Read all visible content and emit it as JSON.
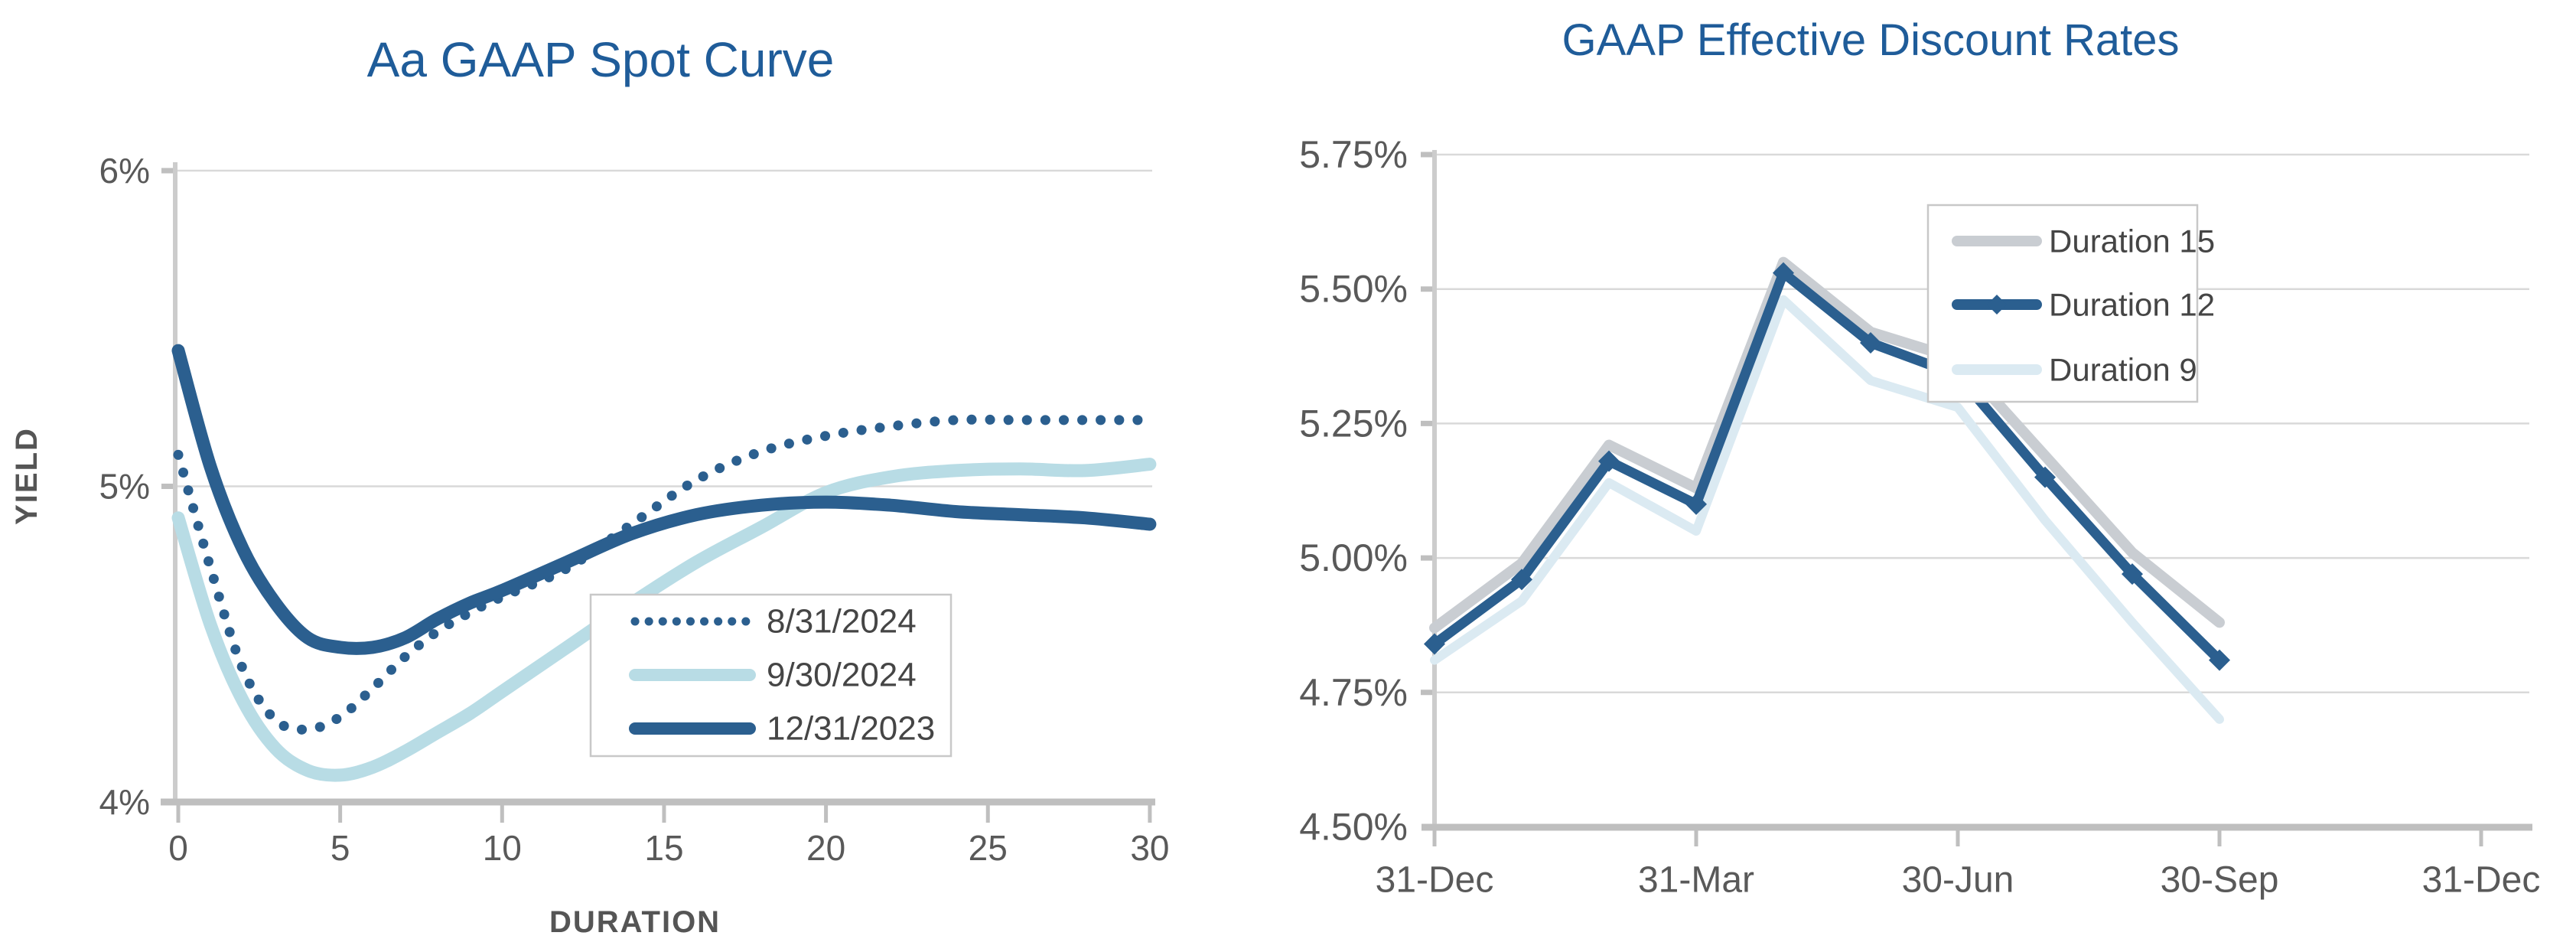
{
  "page": {
    "background": "#FFFFFF"
  },
  "palette": {
    "title_blue": "#1F5C99",
    "dark_blue": "#2B5F8F",
    "light_blue": "#B8DCE5",
    "pale_blue": "#DBEAF2",
    "gray_series": "#C9CDD2",
    "grid": "#D9D9D9",
    "axis": "#BFBFBF",
    "tick_text": "#595959",
    "legend_text": "#454545"
  },
  "chart_data": [
    {
      "type": "line",
      "title": "Aa GAAP Spot Curve",
      "xlabel": "DURATION",
      "ylabel": "YIELD",
      "xlim": [
        0,
        30
      ],
      "ylim": [
        4,
        6
      ],
      "x_ticks": [
        "0",
        "5",
        "10",
        "15",
        "20",
        "25",
        "30"
      ],
      "y_ticks": [
        "6%",
        "5%",
        "4%"
      ],
      "y_tick_values": [
        6,
        5,
        4
      ],
      "grid_values": [
        6,
        5
      ],
      "grid_on": true,
      "legend_position": "inside-lower-right",
      "legend_entries": [
        "8/31/2024",
        "9/30/2024",
        "12/31/2023"
      ],
      "x": [
        0,
        1,
        2,
        3,
        4,
        5,
        6,
        7,
        8,
        9,
        10,
        12,
        14,
        16,
        18,
        20,
        22,
        24,
        26,
        28,
        30
      ],
      "series": [
        {
          "name": "8/31/2024",
          "style": "dotted",
          "color": "#2B5F8F",
          "values": [
            5.1,
            4.74,
            4.42,
            4.26,
            4.23,
            4.27,
            4.36,
            4.46,
            4.54,
            4.6,
            4.65,
            4.74,
            4.88,
            5.02,
            5.11,
            5.16,
            5.19,
            5.21,
            5.21,
            5.21,
            5.21
          ]
        },
        {
          "name": "9/30/2024",
          "style": "solid",
          "color": "#B8DCE5",
          "values": [
            4.9,
            4.56,
            4.32,
            4.17,
            4.1,
            4.085,
            4.11,
            4.16,
            4.22,
            4.28,
            4.35,
            4.49,
            4.63,
            4.76,
            4.87,
            4.98,
            5.03,
            5.05,
            5.055,
            5.05,
            5.07
          ]
        },
        {
          "name": "12/31/2023",
          "style": "solid",
          "color": "#2B5F8F",
          "values": [
            5.43,
            5.06,
            4.8,
            4.63,
            4.52,
            4.49,
            4.49,
            4.52,
            4.58,
            4.63,
            4.67,
            4.76,
            4.85,
            4.91,
            4.94,
            4.95,
            4.94,
            4.92,
            4.91,
            4.9,
            4.88
          ]
        }
      ]
    },
    {
      "type": "line",
      "title": "GAAP Effective Discount Rates",
      "xlabel": "",
      "ylabel": "",
      "ylim": [
        4.5,
        5.75
      ],
      "x_ticks": [
        "31-Dec",
        "31-Mar",
        "30-Jun",
        "30-Sep",
        "31-Dec"
      ],
      "y_ticks": [
        "5.75%",
        "5.50%",
        "5.25%",
        "5.00%",
        "4.75%",
        "4.50%"
      ],
      "y_tick_values": [
        5.75,
        5.5,
        5.25,
        5.0,
        4.75,
        4.5
      ],
      "grid_values": [
        5.75,
        5.5,
        5.25,
        5.0,
        4.75
      ],
      "grid_on": true,
      "legend_position": "inside-upper-right",
      "legend_entries": [
        "Duration 15",
        "Duration 12",
        "Duration 9"
      ],
      "categories": [
        "31-Dec",
        "31-Jan",
        "29-Feb",
        "31-Mar",
        "30-Apr",
        "31-May",
        "30-Jun",
        "31-Jul",
        "31-Aug",
        "30-Sep"
      ],
      "series": [
        {
          "name": "Duration 15",
          "style": "solid",
          "marker": "none",
          "color": "#C9CDD2",
          "values": [
            4.87,
            4.99,
            5.21,
            5.13,
            5.55,
            5.42,
            5.37,
            5.19,
            5.01,
            4.88
          ]
        },
        {
          "name": "Duration 12",
          "style": "solid",
          "marker": "diamond",
          "color": "#2B5F8F",
          "values": [
            4.84,
            4.96,
            5.18,
            5.1,
            5.53,
            5.4,
            5.34,
            5.15,
            4.97,
            4.81
          ]
        },
        {
          "name": "Duration 9",
          "style": "solid",
          "marker": "none",
          "color": "#DBEAF2",
          "values": [
            4.81,
            4.92,
            5.14,
            5.05,
            5.48,
            5.33,
            5.28,
            5.07,
            4.88,
            4.7
          ]
        }
      ]
    }
  ]
}
